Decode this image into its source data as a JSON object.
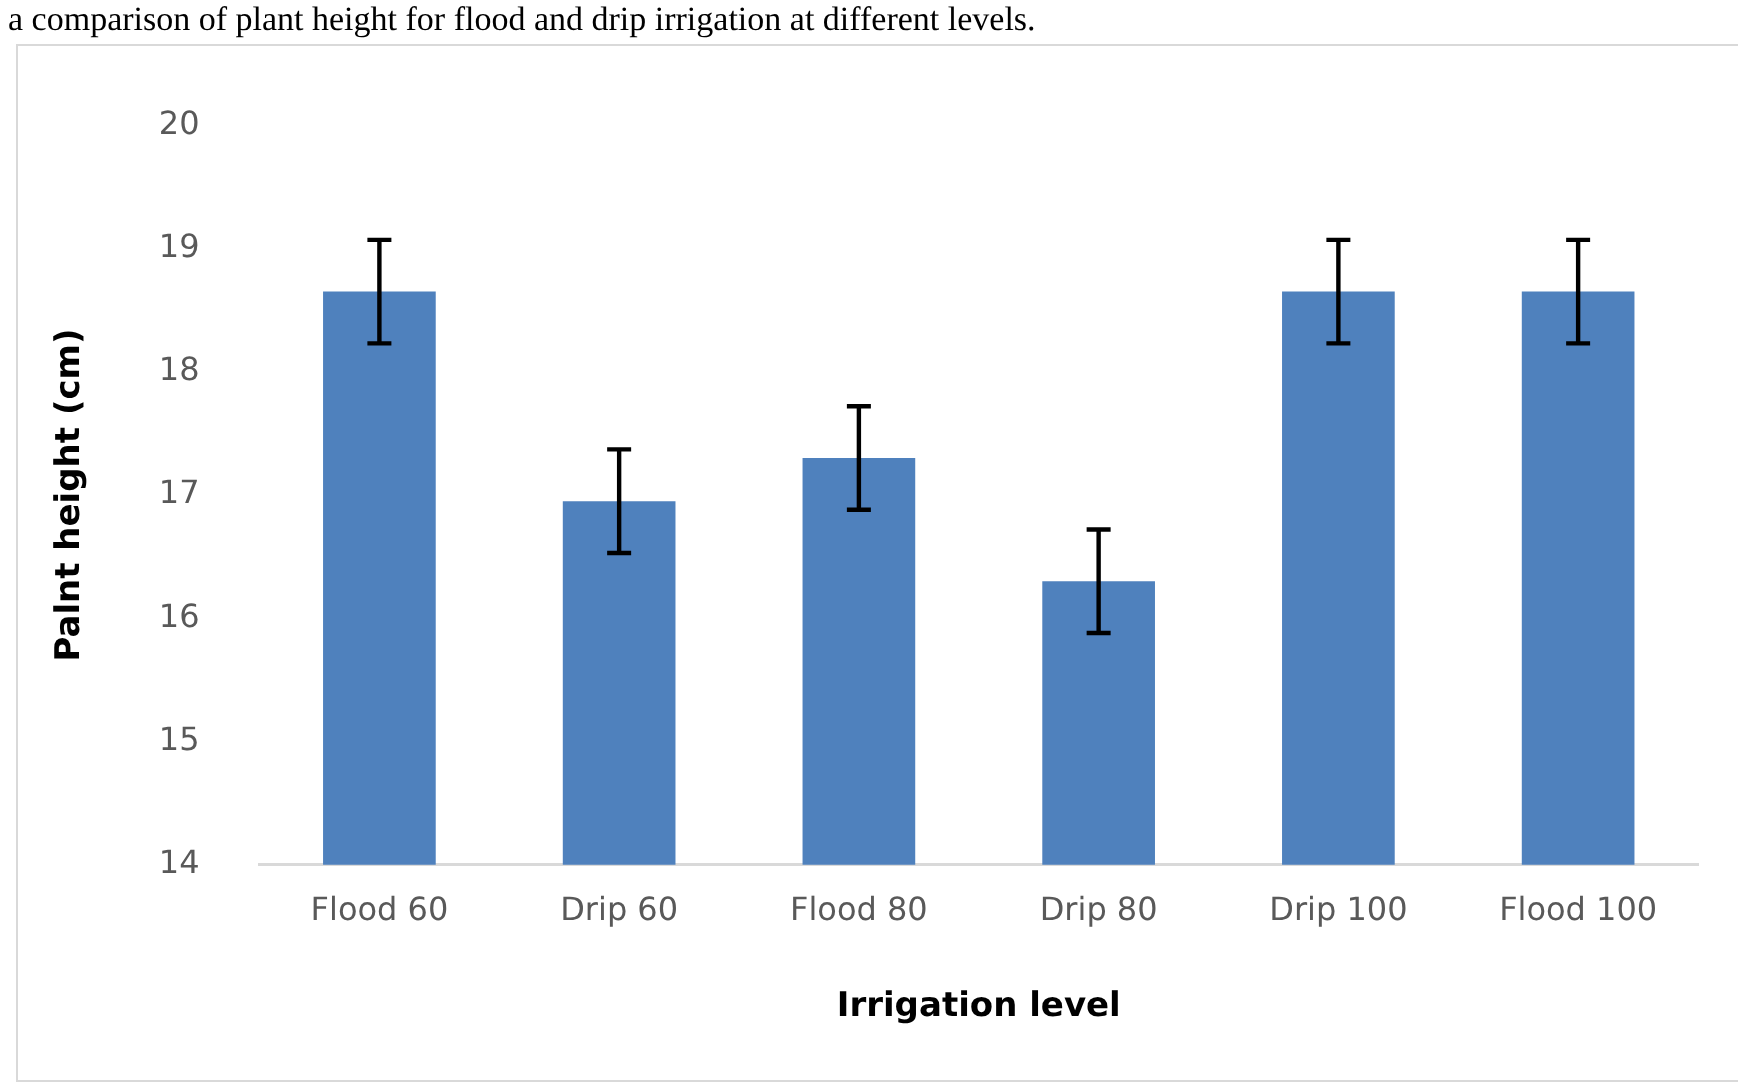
{
  "chart_data": {
    "type": "bar",
    "title": "a comparison of plant height for flood and drip irrigation at different levels.",
    "xlabel": "Irrigation level",
    "ylabel": "Palnt height (cm)",
    "categories": [
      "Flood 60",
      "Drip 60",
      "Flood 80",
      "Drip 80",
      "Drip 100",
      "Flood 100"
    ],
    "values": [
      18.65,
      16.95,
      17.3,
      16.3,
      18.65,
      18.65
    ],
    "errors": [
      0.42,
      0.42,
      0.42,
      0.42,
      0.42,
      0.42
    ],
    "color": "#4f81bd",
    "ylim": [
      14,
      20
    ],
    "yticks": [
      14,
      15,
      16,
      17,
      18,
      19,
      20
    ],
    "grid": false,
    "legend": false
  }
}
